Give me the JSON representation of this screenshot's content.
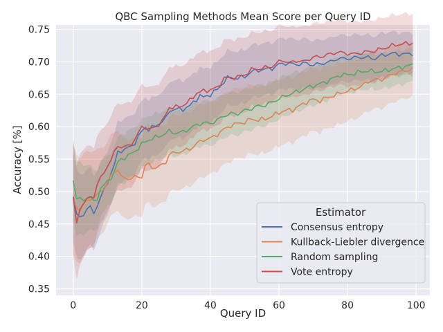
{
  "chart_data": {
    "type": "line",
    "title": "QBC Sampling Methods Mean Score per Query ID",
    "xlabel": "Query ID",
    "ylabel": "Accuracy [%]",
    "xlim": [
      -5,
      104
    ],
    "ylim": [
      0.34,
      0.757
    ],
    "xticks": [
      0,
      20,
      40,
      60,
      80,
      100
    ],
    "xtick_labels": [
      "0",
      "20",
      "40",
      "60",
      "80",
      "100"
    ],
    "yticks": [
      0.35,
      0.4,
      0.45,
      0.5,
      0.55,
      0.6,
      0.65,
      0.7,
      0.75
    ],
    "ytick_labels": [
      "0.35",
      "0.40",
      "0.45",
      "0.50",
      "0.55",
      "0.60",
      "0.65",
      "0.70",
      "0.75"
    ],
    "grid": true,
    "background": "#eaeaf2",
    "legend": {
      "title": "Estimator",
      "position": "lower-right"
    },
    "x_start": 0,
    "x_end": 99,
    "series": [
      {
        "name": "Consensus entropy",
        "color": "#4c72b0",
        "anchors": [
          [
            0,
            0.492
          ],
          [
            1,
            0.463
          ],
          [
            2,
            0.462
          ],
          [
            3,
            0.465
          ],
          [
            4,
            0.472
          ],
          [
            5,
            0.476
          ],
          [
            6,
            0.468
          ],
          [
            7,
            0.478
          ],
          [
            8,
            0.49
          ],
          [
            9,
            0.503
          ],
          [
            10,
            0.515
          ],
          [
            12,
            0.54
          ],
          [
            13,
            0.562
          ],
          [
            15,
            0.564
          ],
          [
            18,
            0.575
          ],
          [
            20,
            0.593
          ],
          [
            21,
            0.6
          ],
          [
            22,
            0.595
          ],
          [
            25,
            0.605
          ],
          [
            27,
            0.612
          ],
          [
            28,
            0.625
          ],
          [
            30,
            0.627
          ],
          [
            32,
            0.627
          ],
          [
            34,
            0.632
          ],
          [
            36,
            0.643
          ],
          [
            37,
            0.648
          ],
          [
            38,
            0.645
          ],
          [
            40,
            0.65
          ],
          [
            42,
            0.657
          ],
          [
            44,
            0.67
          ],
          [
            45,
            0.675
          ],
          [
            48,
            0.675
          ],
          [
            50,
            0.677
          ],
          [
            52,
            0.685
          ],
          [
            55,
            0.688
          ],
          [
            58,
            0.69
          ],
          [
            60,
            0.696
          ],
          [
            62,
            0.698
          ],
          [
            65,
            0.696
          ],
          [
            68,
            0.698
          ],
          [
            70,
            0.695
          ],
          [
            72,
            0.697
          ],
          [
            75,
            0.7
          ],
          [
            77,
            0.705
          ],
          [
            80,
            0.705
          ],
          [
            83,
            0.707
          ],
          [
            85,
            0.707
          ],
          [
            88,
            0.705
          ],
          [
            90,
            0.71
          ],
          [
            93,
            0.713
          ],
          [
            95,
            0.712
          ],
          [
            97,
            0.712
          ],
          [
            99,
            0.713
          ]
        ],
        "band": 0.05
      },
      {
        "name": "Kullback-Liebler divergence",
        "color": "#dd8452",
        "anchors": [
          [
            0,
            0.485
          ],
          [
            1,
            0.478
          ],
          [
            2,
            0.47
          ],
          [
            3,
            0.48
          ],
          [
            4,
            0.485
          ],
          [
            5,
            0.49
          ],
          [
            6,
            0.49
          ],
          [
            8,
            0.5
          ],
          [
            10,
            0.512
          ],
          [
            11,
            0.525
          ],
          [
            12,
            0.53
          ],
          [
            13,
            0.535
          ],
          [
            14,
            0.522
          ],
          [
            16,
            0.52
          ],
          [
            18,
            0.522
          ],
          [
            20,
            0.523
          ],
          [
            21,
            0.54
          ],
          [
            22,
            0.542
          ],
          [
            23,
            0.537
          ],
          [
            25,
            0.538
          ],
          [
            27,
            0.545
          ],
          [
            28,
            0.558
          ],
          [
            30,
            0.56
          ],
          [
            32,
            0.563
          ],
          [
            34,
            0.565
          ],
          [
            36,
            0.574
          ],
          [
            38,
            0.58
          ],
          [
            40,
            0.582
          ],
          [
            42,
            0.588
          ],
          [
            44,
            0.596
          ],
          [
            46,
            0.602
          ],
          [
            48,
            0.605
          ],
          [
            50,
            0.607
          ],
          [
            52,
            0.612
          ],
          [
            54,
            0.61
          ],
          [
            56,
            0.612
          ],
          [
            58,
            0.616
          ],
          [
            60,
            0.622
          ],
          [
            62,
            0.625
          ],
          [
            64,
            0.626
          ],
          [
            66,
            0.632
          ],
          [
            68,
            0.638
          ],
          [
            70,
            0.642
          ],
          [
            72,
            0.64
          ],
          [
            74,
            0.645
          ],
          [
            76,
            0.648
          ],
          [
            78,
            0.652
          ],
          [
            80,
            0.655
          ],
          [
            82,
            0.658
          ],
          [
            84,
            0.662
          ],
          [
            86,
            0.67
          ],
          [
            88,
            0.672
          ],
          [
            90,
            0.673
          ],
          [
            92,
            0.678
          ],
          [
            94,
            0.683
          ],
          [
            96,
            0.685
          ],
          [
            98,
            0.688
          ],
          [
            99,
            0.689
          ]
        ],
        "band": 0.065
      },
      {
        "name": "Random sampling",
        "color": "#55a868",
        "anchors": [
          [
            0,
            0.518
          ],
          [
            1,
            0.49
          ],
          [
            2,
            0.487
          ],
          [
            3,
            0.488
          ],
          [
            4,
            0.49
          ],
          [
            5,
            0.492
          ],
          [
            6,
            0.483
          ],
          [
            7,
            0.49
          ],
          [
            8,
            0.505
          ],
          [
            10,
            0.515
          ],
          [
            12,
            0.53
          ],
          [
            13,
            0.545
          ],
          [
            14,
            0.55
          ],
          [
            16,
            0.555
          ],
          [
            18,
            0.562
          ],
          [
            20,
            0.573
          ],
          [
            22,
            0.58
          ],
          [
            25,
            0.585
          ],
          [
            28,
            0.593
          ],
          [
            30,
            0.59
          ],
          [
            32,
            0.592
          ],
          [
            34,
            0.597
          ],
          [
            36,
            0.603
          ],
          [
            38,
            0.606
          ],
          [
            40,
            0.605
          ],
          [
            42,
            0.61
          ],
          [
            44,
            0.617
          ],
          [
            46,
            0.62
          ],
          [
            48,
            0.62
          ],
          [
            50,
            0.625
          ],
          [
            52,
            0.628
          ],
          [
            54,
            0.632
          ],
          [
            56,
            0.633
          ],
          [
            58,
            0.638
          ],
          [
            60,
            0.643
          ],
          [
            62,
            0.648
          ],
          [
            64,
            0.652
          ],
          [
            66,
            0.655
          ],
          [
            68,
            0.66
          ],
          [
            70,
            0.663
          ],
          [
            72,
            0.666
          ],
          [
            74,
            0.67
          ],
          [
            76,
            0.675
          ],
          [
            78,
            0.68
          ],
          [
            80,
            0.68
          ],
          [
            82,
            0.682
          ],
          [
            84,
            0.685
          ],
          [
            86,
            0.686
          ],
          [
            88,
            0.685
          ],
          [
            90,
            0.685
          ],
          [
            92,
            0.688
          ],
          [
            94,
            0.69
          ],
          [
            96,
            0.692
          ],
          [
            98,
            0.694
          ],
          [
            99,
            0.696
          ]
        ],
        "band": 0.04
      },
      {
        "name": "Vote entropy",
        "color": "#c44e52",
        "anchors": [
          [
            0,
            0.49
          ],
          [
            1,
            0.45
          ],
          [
            2,
            0.475
          ],
          [
            3,
            0.483
          ],
          [
            4,
            0.487
          ],
          [
            5,
            0.492
          ],
          [
            6,
            0.492
          ],
          [
            7,
            0.512
          ],
          [
            8,
            0.52
          ],
          [
            9,
            0.53
          ],
          [
            10,
            0.54
          ],
          [
            11,
            0.548
          ],
          [
            12,
            0.56
          ],
          [
            13,
            0.572
          ],
          [
            14,
            0.568
          ],
          [
            16,
            0.57
          ],
          [
            18,
            0.58
          ],
          [
            20,
            0.6
          ],
          [
            21,
            0.6
          ],
          [
            22,
            0.595
          ],
          [
            24,
            0.6
          ],
          [
            26,
            0.608
          ],
          [
            28,
            0.63
          ],
          [
            30,
            0.63
          ],
          [
            32,
            0.633
          ],
          [
            34,
            0.64
          ],
          [
            36,
            0.652
          ],
          [
            38,
            0.655
          ],
          [
            40,
            0.657
          ],
          [
            42,
            0.66
          ],
          [
            44,
            0.675
          ],
          [
            45,
            0.675
          ],
          [
            48,
            0.677
          ],
          [
            50,
            0.68
          ],
          [
            52,
            0.688
          ],
          [
            55,
            0.69
          ],
          [
            58,
            0.693
          ],
          [
            60,
            0.7
          ],
          [
            61,
            0.703
          ],
          [
            63,
            0.698
          ],
          [
            65,
            0.702
          ],
          [
            67,
            0.7
          ],
          [
            70,
            0.707
          ],
          [
            72,
            0.708
          ],
          [
            75,
            0.712
          ],
          [
            77,
            0.715
          ],
          [
            80,
            0.713
          ],
          [
            82,
            0.712
          ],
          [
            85,
            0.715
          ],
          [
            88,
            0.717
          ],
          [
            90,
            0.72
          ],
          [
            93,
            0.725
          ],
          [
            95,
            0.727
          ],
          [
            97,
            0.728
          ],
          [
            99,
            0.729
          ]
        ],
        "band": 0.07
      }
    ]
  }
}
